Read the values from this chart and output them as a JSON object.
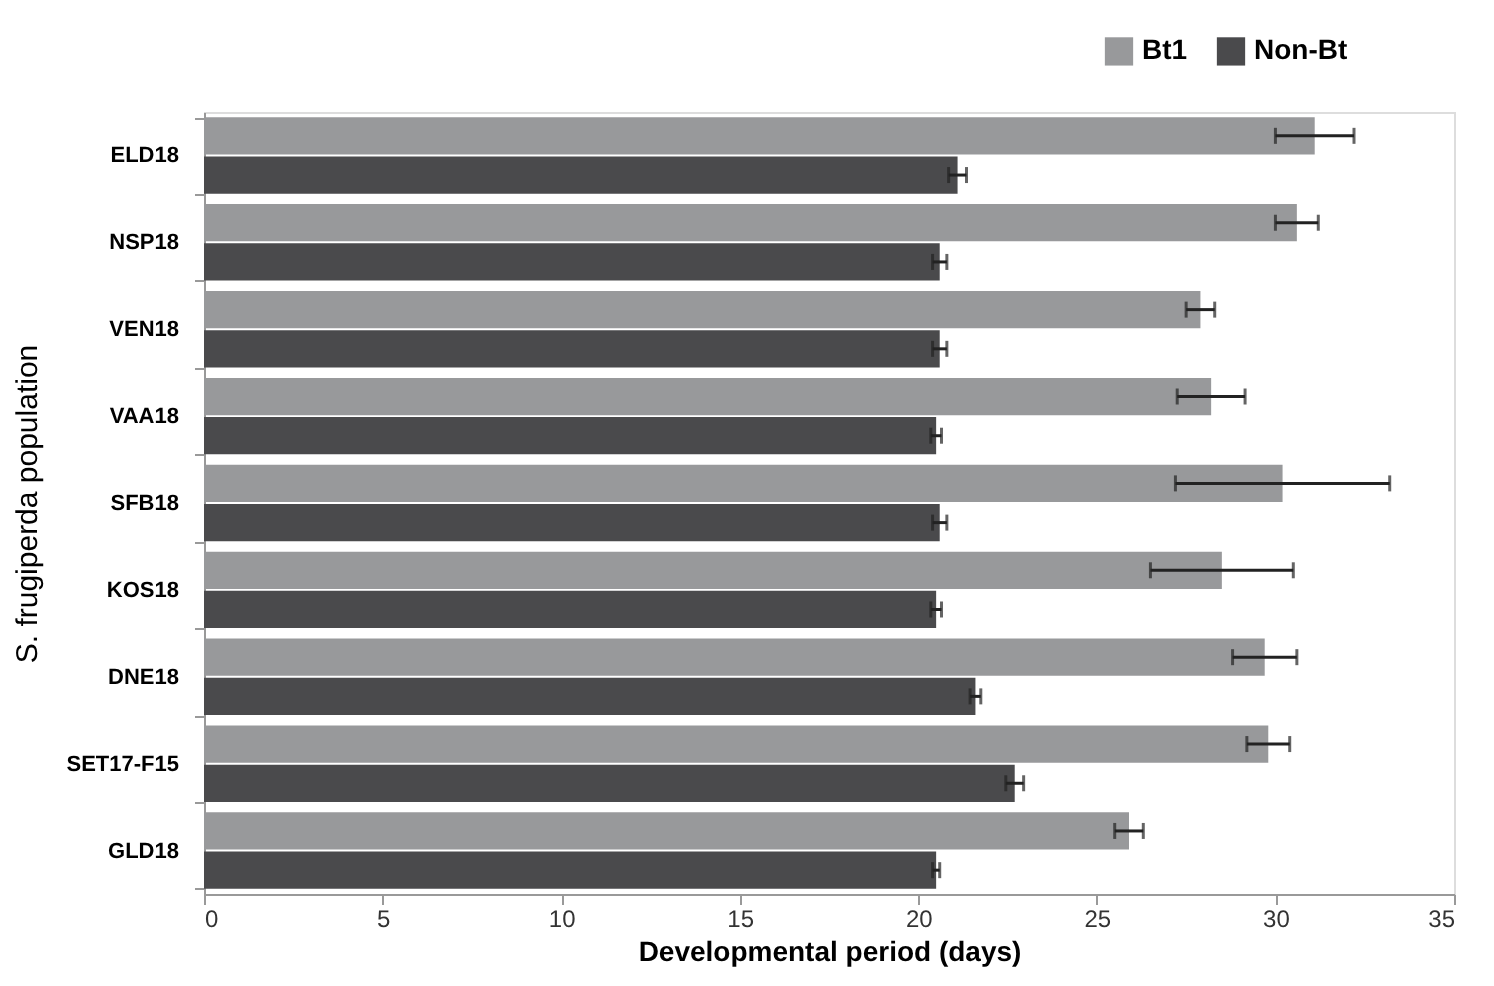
{
  "chart_data": {
    "type": "bar",
    "orientation": "horizontal",
    "xlabel": "Developmental period (days)",
    "ylabel": "S. frugiperda population",
    "categories": [
      "ELD18",
      "NSP18",
      "VEN18",
      "VAA18",
      "SFB18",
      "KOS18",
      "DNE18",
      "SET17-F15",
      "GLD18"
    ],
    "series": [
      {
        "name": "Bt1",
        "color": "#98999b",
        "values": [
          31.1,
          30.6,
          27.9,
          28.2,
          30.2,
          28.5,
          29.7,
          29.8,
          25.9
        ],
        "errors": [
          1.1,
          0.6,
          0.4,
          0.95,
          3.0,
          2.0,
          0.9,
          0.6,
          0.4
        ]
      },
      {
        "name": "Non-Bt",
        "color": "#4a4a4c",
        "values": [
          21.1,
          20.6,
          20.6,
          20.5,
          20.6,
          20.5,
          21.6,
          22.7,
          20.5
        ],
        "errors": [
          0.25,
          0.2,
          0.2,
          0.15,
          0.2,
          0.15,
          0.15,
          0.25,
          0.1
        ]
      }
    ],
    "xlim": [
      0,
      35
    ],
    "xticks": [
      0,
      5,
      10,
      15,
      20,
      25,
      30,
      35
    ],
    "grid": false,
    "legend": "top right"
  }
}
